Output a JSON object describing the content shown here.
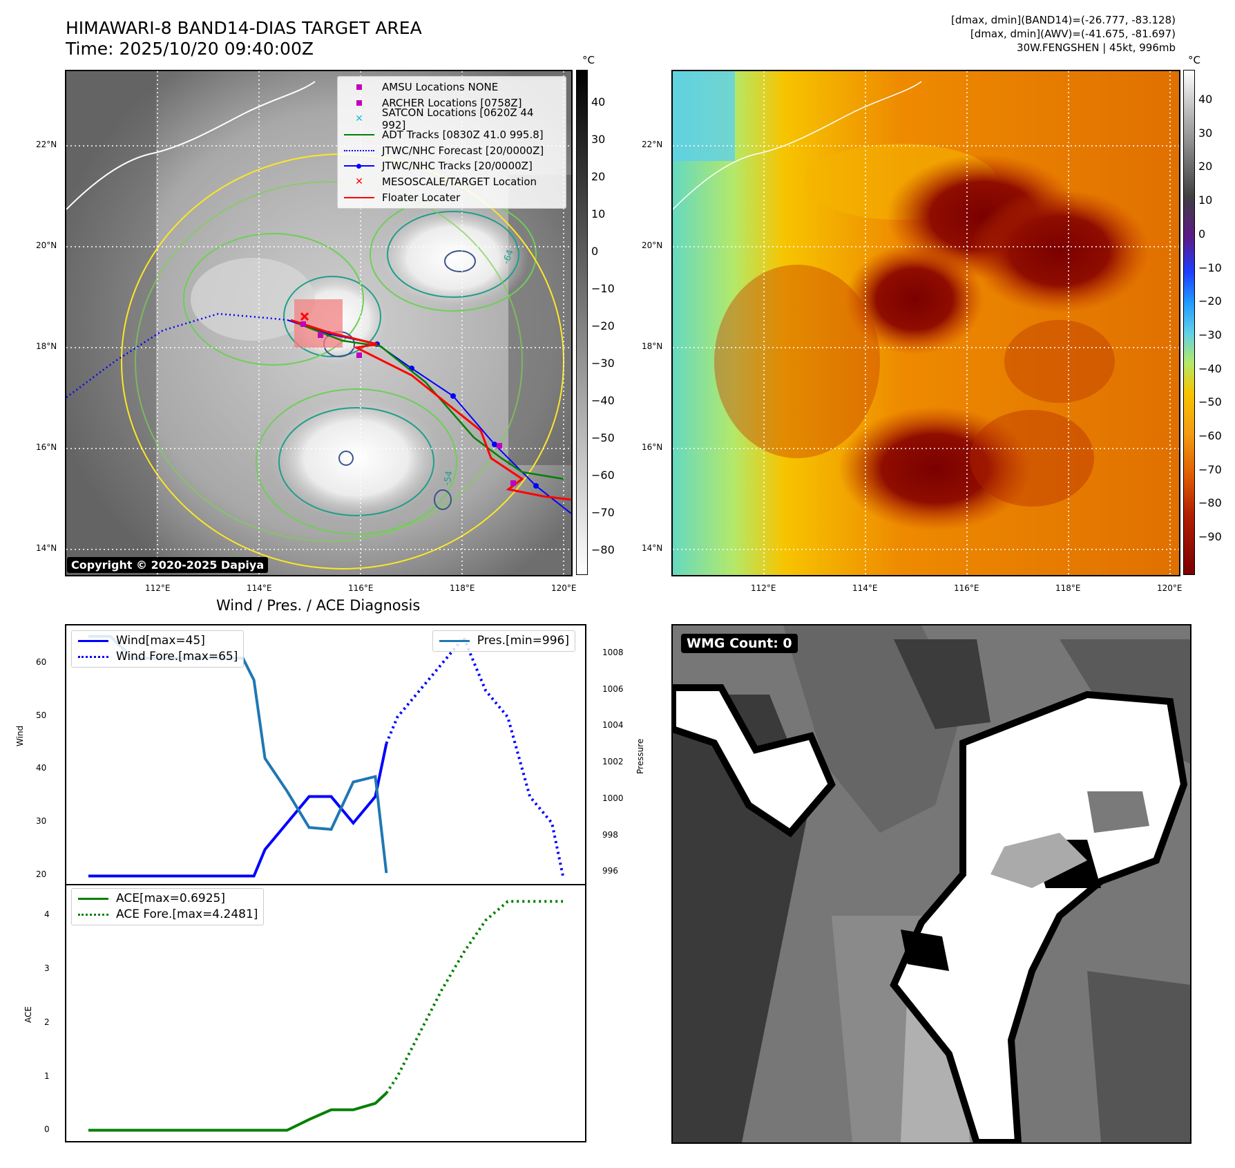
{
  "header": {
    "title_line1": "HIMAWARI-8 BAND14-DIAS TARGET AREA",
    "title_line2": "Time: 2025/10/20 09:40:00Z",
    "info_line1": "[dmax, dmin](BAND14)=(-26.777, -83.128)",
    "info_line2": "[dmax, dmin](AWV)=(-41.675, -81.697)",
    "info_line3": "30W.FENGSHEN | 45kt, 996mb"
  },
  "map_axes": {
    "lon_ticks": [
      "112°E",
      "114°E",
      "116°E",
      "118°E",
      "120°E"
    ],
    "lat_ticks": [
      "22°N",
      "20°N",
      "18°N",
      "16°N",
      "14°N"
    ],
    "unit": "°C"
  },
  "ir_colorbar": {
    "ticks": [
      "40",
      "30",
      "20",
      "10",
      "0",
      "−10",
      "−20",
      "−30",
      "−40",
      "−50",
      "−60",
      "−70",
      "−80"
    ]
  },
  "awv_colorbar": {
    "ticks": [
      "40",
      "30",
      "20",
      "10",
      "0",
      "−10",
      "−20",
      "−30",
      "−40",
      "−50",
      "−60",
      "−70",
      "−80",
      "−90"
    ]
  },
  "map_legend": [
    {
      "label": "AMSU Locations NONE",
      "marker": "square",
      "color": "#bf00bf"
    },
    {
      "label": "ARCHER Locations [0758Z]",
      "marker": "square",
      "color": "#bf00bf"
    },
    {
      "label": "SATCON Locations [0620Z 44 992]",
      "marker": "x",
      "color": "#17becf"
    },
    {
      "label": "ADT Tracks [0830Z 41.0 995.8]",
      "marker": "line",
      "color": "#008000"
    },
    {
      "label": "JTWC/NHC Forecast [20/0000Z]",
      "marker": "dotted",
      "color": "#0000ff"
    },
    {
      "label": "JTWC/NHC Tracks [20/0000Z]",
      "marker": "line-dot",
      "color": "#0000ff"
    },
    {
      "label": "MESOSCALE/TARGET Location",
      "marker": "x",
      "color": "#ff0000"
    },
    {
      "label": "Floater Locater",
      "marker": "line",
      "color": "#ff0000"
    }
  ],
  "contour_labels": [
    "-64",
    "-54"
  ],
  "copyright": "Copyright © 2020-2025 Dapiya",
  "diagnosis_title": "Wind / Pres. / ACE Diagnosis",
  "wmg_label": "WMG Count: 0",
  "colors": {
    "wind": "#0000ff",
    "pres": "#1f77b4",
    "ace": "#008000",
    "floater": "#ff0000"
  },
  "chart_data": [
    {
      "type": "line",
      "name": "wind-pressure",
      "ylabel": "Wind",
      "ylabel_right": "Pressure",
      "ylim": [
        18.5,
        67.3
      ],
      "ylim_right": [
        995.4,
        1009.6
      ],
      "yticks": [
        20,
        30,
        40,
        50,
        60
      ],
      "yticks_right": [
        996,
        998,
        1000,
        1002,
        1004,
        1006,
        1008
      ],
      "xlim": [
        -1,
        22.5
      ],
      "series": [
        {
          "name": "Wind[max=45]",
          "axis": "left",
          "style": "solid",
          "x": [
            0,
            1,
            2,
            3,
            4,
            5,
            6,
            7,
            7.5,
            8,
            9,
            10,
            11,
            12,
            13,
            13.5
          ],
          "y": [
            20,
            20,
            20,
            20,
            20,
            20,
            20,
            20,
            20,
            25,
            30,
            35,
            35,
            30,
            35,
            45
          ]
        },
        {
          "name": "Wind Fore.[max=65]",
          "axis": "left",
          "style": "dotted",
          "x": [
            13.5,
            14,
            15,
            16,
            17,
            18,
            19,
            20,
            21,
            21.5
          ],
          "y": [
            45,
            50,
            55,
            60,
            65,
            55,
            50,
            35,
            30,
            20
          ]
        },
        {
          "name": "Pres.[min=996]",
          "axis": "right",
          "style": "solid",
          "x": [
            0,
            1,
            2,
            3,
            4,
            5,
            6,
            7,
            7.5,
            8,
            9,
            10,
            11,
            12,
            13,
            13.5
          ],
          "y": [
            1009,
            1009,
            1007.8,
            1007.8,
            1007.8,
            1007.8,
            1007.8,
            1007.8,
            1006.6,
            1002.3,
            1000.5,
            998.5,
            998.4,
            1001,
            1001.3,
            996
          ]
        }
      ]
    },
    {
      "type": "line",
      "name": "ace",
      "ylabel": "ACE",
      "ylim": [
        -0.2,
        4.6
      ],
      "yticks": [
        0,
        1,
        2,
        3,
        4
      ],
      "xlim": [
        -1,
        22.5
      ],
      "series": [
        {
          "name": "ACE[max=0.6925]",
          "style": "solid",
          "x": [
            0,
            2,
            4,
            6,
            8,
            9,
            10,
            11,
            12,
            13,
            13.5
          ],
          "y": [
            0,
            0,
            0,
            0,
            0,
            0,
            0.2,
            0.38,
            0.38,
            0.5,
            0.69
          ]
        },
        {
          "name": "ACE Fore.[max=4.2481]",
          "style": "dotted",
          "x": [
            13.5,
            14,
            15,
            16,
            17,
            18,
            19,
            20,
            21,
            21.5
          ],
          "y": [
            0.69,
            1.0,
            1.8,
            2.6,
            3.3,
            3.9,
            4.25,
            4.25,
            4.25,
            4.25
          ]
        }
      ]
    }
  ]
}
